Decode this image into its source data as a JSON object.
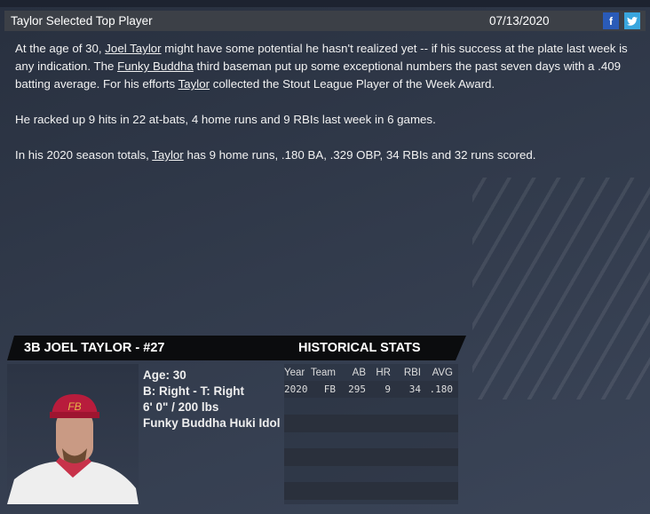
{
  "header": {
    "title": "Taylor Selected Top Player",
    "date": "07/13/2020",
    "facebook_icon": "f",
    "twitter_icon": "t"
  },
  "article": {
    "p1": {
      "a": "At the age of 30, ",
      "link1": "Joel Taylor",
      "b": " might have some potential he hasn't realized yet -- if his success at the plate last week is any indication. The ",
      "link2": "Funky Buddha",
      "c": " third baseman put up some exceptional numbers the past seven days with a .409 batting average. For his efforts ",
      "link3": "Taylor",
      "d": " collected the Stout League Player of the Week Award."
    },
    "p2": "He racked up 9 hits in 22 at-bats, 4 home runs and 9 RBIs last week in 6 games.",
    "p3": {
      "a": "In his 2020 season totals, ",
      "link": "Taylor",
      "b": " has 9 home runs, .180 BA, .329 OBP, 34 RBIs and 32 runs scored."
    }
  },
  "player": {
    "title": "3B JOEL TAYLOR - #27",
    "age": "Age: 30",
    "bats_throws": "B: Right - T: Right",
    "size": "6' 0\" / 200 lbs",
    "team": "Funky Buddha Huki Idol",
    "cap_logo": "FB"
  },
  "stats": {
    "title": "HISTORICAL STATS",
    "columns": [
      "Year",
      "Team",
      "AB",
      "HR",
      "RBI",
      "AVG"
    ],
    "rows": [
      [
        "2020",
        "FB",
        "295",
        "9",
        "34",
        ".180"
      ]
    ]
  }
}
